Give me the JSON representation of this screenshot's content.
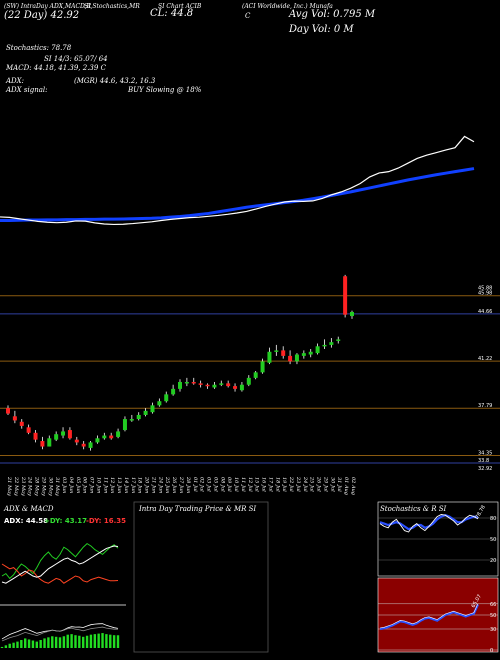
{
  "header": {
    "line1": [
      "(SW) IntraDay ADX,MACD,R",
      "SI,Stochastics,MR",
      "SI Chart ACIB",
      "(ACI Worldwide, Inc.) Munafa"
    ],
    "cl_label": "CL: 44.8",
    "cl_prefix": "C",
    "date_label": "(22 Day)  42.92",
    "avg_vol": "Avg Vol: 0.795 M",
    "day_vol": "Day Vol: 0  M",
    "stochastics": "Stochastics: 78.78",
    "si": "SI 14/3: 65.07/ 64",
    "macd": "MACD: 44.18,  41.39,  2.39  C",
    "adx": "ADX:",
    "mgr": "(MGR) 44.6,  43.2,  16.3",
    "adx_signal": "ADX  signal:",
    "buy": "BUY Slowing @ 18%"
  },
  "colors": {
    "background": "#000000",
    "up": "#22cc22",
    "down": "#ff2222",
    "ma_slow": "#1040ff",
    "ma_fast": "#ffffff",
    "level_line": "#8a5a10",
    "blue_line": "#3040a0"
  },
  "chart_data": [
    {
      "type": "candlestick",
      "title": "ACIB daily price",
      "dates": [
        "21 May",
        "22 May",
        "23 May",
        "24 May",
        "28 May",
        "29 May",
        "30 May",
        "31 May",
        "03 Jun",
        "04 Jun",
        "05 Jun",
        "06 Jun",
        "07 Jun",
        "10 Jun",
        "11 Jun",
        "12 Jun",
        "13 Jun",
        "14 Jun",
        "17 Jun",
        "18 Jun",
        "20 Jun",
        "21 Jun",
        "24 Jun",
        "25 Jun",
        "26 Jun",
        "27 Jun",
        "28 Jun",
        "01 Jul",
        "02 Jul",
        "03 Jul",
        "05 Jul",
        "08 Jul",
        "09 Jul",
        "10 Jul",
        "11 Jul",
        "12 Jul",
        "15 Jul",
        "16 Jul",
        "17 Jul",
        "18 Jul",
        "19 Jul",
        "22 Jul",
        "23 Jul",
        "24 Jul",
        "25 Jul",
        "26 Jul",
        "29 Jul",
        "30 Jul",
        "31 Jul",
        "01 Aug",
        "02 Aug"
      ],
      "open": [
        37.8,
        37.2,
        36.8,
        36.4,
        36.0,
        35.4,
        35.0,
        35.5,
        35.8,
        36.2,
        35.5,
        35.2,
        34.9,
        35.3,
        35.6,
        35.8,
        35.7,
        36.2,
        37.0,
        37.0,
        37.3,
        37.5,
        38.0,
        38.3,
        38.8,
        39.2,
        39.6,
        39.7,
        39.6,
        39.5,
        39.3,
        39.5,
        39.6,
        39.4,
        39.1,
        39.5,
        40.0,
        40.4,
        41.1,
        41.9,
        42.0,
        41.6,
        41.2,
        41.6,
        41.7,
        41.8,
        42.3,
        42.4,
        42.7,
        47.4,
        44.5
      ],
      "high": [
        38.0,
        37.6,
        37.0,
        36.6,
        36.2,
        35.7,
        35.8,
        36.1,
        36.4,
        36.4,
        35.7,
        35.4,
        35.4,
        35.8,
        36.0,
        36.0,
        36.3,
        37.2,
        37.3,
        37.5,
        37.8,
        38.2,
        38.5,
        39.0,
        39.5,
        39.9,
        40.0,
        40.0,
        39.8,
        39.6,
        39.7,
        39.8,
        39.8,
        39.6,
        39.7,
        40.2,
        40.5,
        41.4,
        42.2,
        42.4,
        42.3,
        42.0,
        41.8,
        42.0,
        42.1,
        42.5,
        42.8,
        42.9,
        43.0,
        47.5,
        44.9
      ],
      "low": [
        37.3,
        36.7,
        36.3,
        35.9,
        35.3,
        34.8,
        35.0,
        35.4,
        35.6,
        35.5,
        35.1,
        34.8,
        34.7,
        35.2,
        35.5,
        35.5,
        35.6,
        36.1,
        36.8,
        36.9,
        37.2,
        37.4,
        37.9,
        38.2,
        38.7,
        39.0,
        39.4,
        39.5,
        39.3,
        39.2,
        39.2,
        39.4,
        39.3,
        39.0,
        39.0,
        39.4,
        39.9,
        40.3,
        41.0,
        41.6,
        41.4,
        41.0,
        41.0,
        41.4,
        41.5,
        41.7,
        42.1,
        42.2,
        42.5,
        44.4,
        44.3
      ],
      "close": [
        37.4,
        36.9,
        36.5,
        36.0,
        35.5,
        35.0,
        35.6,
        35.9,
        36.1,
        35.6,
        35.3,
        35.0,
        35.3,
        35.6,
        35.8,
        35.6,
        36.1,
        37.0,
        37.0,
        37.3,
        37.6,
        38.0,
        38.3,
        38.8,
        39.2,
        39.7,
        39.7,
        39.6,
        39.5,
        39.4,
        39.5,
        39.6,
        39.4,
        39.2,
        39.5,
        40.0,
        40.4,
        41.2,
        41.9,
        42.0,
        41.6,
        41.2,
        41.7,
        41.8,
        41.9,
        42.3,
        42.4,
        42.6,
        42.8,
        44.6,
        44.8
      ],
      "levels": [
        {
          "value": 45.98,
          "label": "45.98"
        },
        {
          "value": 44.66,
          "label": "44.66"
        },
        {
          "value": 41.22,
          "label": "41.22"
        },
        {
          "value": 37.79,
          "label": "37.79"
        },
        {
          "value": 34.35,
          "label": "34.35"
        },
        {
          "value": 33.8,
          "label": "33.8"
        }
      ],
      "extra_labels": [
        "45.88",
        "32.92"
      ],
      "ma_slow": [
        46.6,
        46.6,
        46.7,
        46.8,
        46.8,
        46.9,
        46.9,
        47.0,
        47.0,
        47.1,
        47.1,
        47.2,
        47.2,
        47.3,
        47.4,
        47.5,
        47.6,
        47.8,
        48.1,
        48.4,
        48.8,
        49.3,
        49.8,
        50.5,
        51.2,
        51.9,
        52.6,
        53.2,
        53.7,
        54.2,
        54.7,
        55.2,
        55.8,
        56.5,
        57.2,
        58.0,
        58.8,
        59.6,
        60.5,
        61.4,
        62.3,
        63.2,
        64.1,
        65.0,
        65.8,
        66.6,
        67.4,
        68.1,
        68.8,
        69.5,
        70.2
      ],
      "ma_fast": [
        48.2,
        48.0,
        47.4,
        46.8,
        46.2,
        45.8,
        45.6,
        45.8,
        46.4,
        46.3,
        45.5,
        45.0,
        44.8,
        44.9,
        45.2,
        45.6,
        46.0,
        46.6,
        47.1,
        47.5,
        47.9,
        48.1,
        48.5,
        48.9,
        49.4,
        50.0,
        50.7,
        51.8,
        53.0,
        54.0,
        55.0,
        55.4,
        55.3,
        55.5,
        56.6,
        58.3,
        59.6,
        61.3,
        63.4,
        66.4,
        68.2,
        68.8,
        70.4,
        72.6,
        74.8,
        76.3,
        77.4,
        78.6,
        79.7,
        84.8,
        82.4
      ],
      "ma_range": [
        40,
        90
      ]
    },
    {
      "type": "line",
      "title": "ADX  & MACD",
      "labels": [
        "ADX: 44.58",
        "+DY: 43.17",
        "-DY: 16.35"
      ],
      "label_colors": [
        "#ffffff",
        "#33dd33",
        "#ff3333"
      ],
      "adx": [
        15,
        14,
        16,
        18,
        20,
        22,
        24,
        22,
        20,
        19,
        20,
        23,
        26,
        28,
        30,
        32,
        34,
        35,
        33,
        32,
        30,
        31,
        33,
        35,
        37,
        39,
        41,
        43,
        44,
        45,
        44.6
      ],
      "plus_di": [
        20,
        22,
        18,
        21,
        26,
        30,
        28,
        25,
        22,
        27,
        33,
        37,
        40,
        36,
        34,
        38,
        44,
        42,
        39,
        36,
        40,
        44,
        47,
        45,
        42,
        40,
        38,
        41,
        44,
        46,
        43.2
      ],
      "minus_di": [
        30,
        28,
        26,
        27,
        24,
        20,
        22,
        25,
        24,
        20,
        17,
        15,
        14,
        16,
        18,
        17,
        14,
        16,
        18,
        20,
        19,
        16,
        15,
        17,
        18,
        19,
        18,
        17,
        16,
        16,
        16.3
      ],
      "macd_hist": [
        0.2,
        0.5,
        0.8,
        1.0,
        1.2,
        1.5,
        1.8,
        1.6,
        1.4,
        1.2,
        1.5,
        1.8,
        2.0,
        2.2,
        2.1,
        2.0,
        2.2,
        2.5,
        2.6,
        2.4,
        2.3,
        2.1,
        2.3,
        2.5,
        2.6,
        2.7,
        2.8,
        2.6,
        2.5,
        2.4,
        2.39
      ]
    },
    {
      "type": "panel",
      "title": "Intra  Day Trading Price  & MR        SI",
      "labels": []
    },
    {
      "type": "line",
      "title": "Stochastics & R          SI",
      "stoch_ticks": [
        "80",
        "50",
        "20"
      ],
      "rsi_ticks": [
        "66",
        "50",
        "30",
        "0"
      ],
      "stochastic_k": [
        72,
        68,
        66,
        74,
        78,
        70,
        62,
        60,
        68,
        72,
        66,
        62,
        68,
        75,
        82,
        85,
        84,
        80,
        76,
        70,
        74,
        80,
        84,
        82,
        78.78
      ],
      "stochastic_d": [
        74,
        72,
        70,
        72,
        74,
        72,
        68,
        64,
        66,
        70,
        70,
        66,
        68,
        72,
        78,
        82,
        84,
        82,
        78,
        74,
        74,
        78,
        80,
        82,
        80
      ],
      "rsi": [
        30,
        31,
        33,
        35,
        38,
        41,
        40,
        38,
        36,
        38,
        42,
        45,
        46,
        44,
        42,
        46,
        50,
        52,
        54,
        52,
        50,
        48,
        50,
        52,
        65.07
      ],
      "value_labels": [
        "78.78",
        "65.07"
      ]
    }
  ]
}
